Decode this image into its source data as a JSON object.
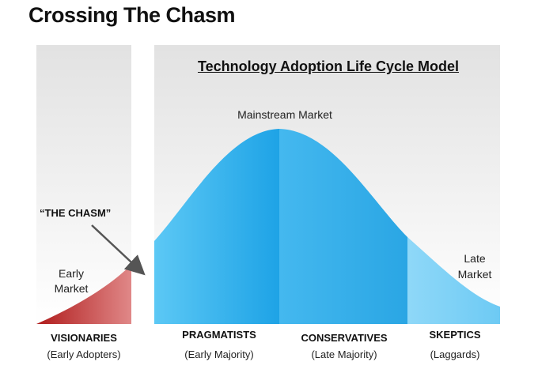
{
  "title": "Crossing The Chasm",
  "diagram_title": "Technology Adoption Life Cycle Model",
  "chasm_label": "“THE CHASM”",
  "mainstream_label": "Mainstream Market",
  "early_market": {
    "line1": "Early",
    "line2": "Market"
  },
  "late_market": {
    "line1": "Late",
    "line2": "Market"
  },
  "segments": [
    {
      "name": "VISIONARIES",
      "sub": "(Early Adopters)"
    },
    {
      "name": "PRAGMATISTS",
      "sub": "(Early Majority)"
    },
    {
      "name": "CONSERVATIVES",
      "sub": "(Late Majority)"
    },
    {
      "name": "SKEPTICS",
      "sub": "(Laggards)"
    }
  ],
  "colors": {
    "early_red": "#c0302c",
    "blue_main": "#38b2ea",
    "blue_light": "#86d4f6",
    "panel_bg": "#e4e4e4",
    "arrow": "#555555"
  }
}
